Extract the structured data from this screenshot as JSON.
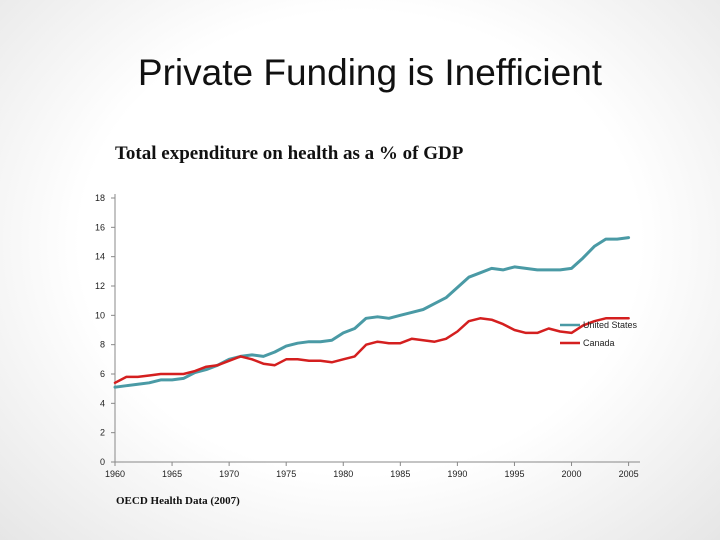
{
  "slide": {
    "title": "Private Funding is Inefficient"
  },
  "source_note": "OECD Health Data (2007)",
  "chart_data": {
    "type": "line",
    "title": "Total expenditure on health as a % of GDP",
    "xlabel": "",
    "ylabel": "",
    "xlim": [
      1960,
      2006
    ],
    "ylim": [
      0,
      18
    ],
    "x_ticks": [
      1960,
      1965,
      1970,
      1975,
      1980,
      1985,
      1990,
      1995,
      2000,
      2005
    ],
    "y_ticks": [
      0,
      2,
      4,
      6,
      8,
      10,
      12,
      14,
      16,
      18
    ],
    "grid": false,
    "legend_position": "right",
    "series": [
      {
        "name": "United States",
        "color": "#4a9aa5",
        "points": [
          [
            1960,
            5.1
          ],
          [
            1961,
            5.2
          ],
          [
            1962,
            5.3
          ],
          [
            1963,
            5.4
          ],
          [
            1964,
            5.6
          ],
          [
            1965,
            5.6
          ],
          [
            1966,
            5.7
          ],
          [
            1967,
            6.1
          ],
          [
            1968,
            6.3
          ],
          [
            1969,
            6.6
          ],
          [
            1970,
            7.0
          ],
          [
            1971,
            7.2
          ],
          [
            1972,
            7.3
          ],
          [
            1973,
            7.2
          ],
          [
            1974,
            7.5
          ],
          [
            1975,
            7.9
          ],
          [
            1976,
            8.1
          ],
          [
            1977,
            8.2
          ],
          [
            1978,
            8.2
          ],
          [
            1979,
            8.3
          ],
          [
            1980,
            8.8
          ],
          [
            1981,
            9.1
          ],
          [
            1982,
            9.8
          ],
          [
            1983,
            9.9
          ],
          [
            1984,
            9.8
          ],
          [
            1985,
            10.0
          ],
          [
            1986,
            10.2
          ],
          [
            1987,
            10.4
          ],
          [
            1988,
            10.8
          ],
          [
            1989,
            11.2
          ],
          [
            1990,
            11.9
          ],
          [
            1991,
            12.6
          ],
          [
            1992,
            12.9
          ],
          [
            1993,
            13.2
          ],
          [
            1994,
            13.1
          ],
          [
            1995,
            13.3
          ],
          [
            1996,
            13.2
          ],
          [
            1997,
            13.1
          ],
          [
            1998,
            13.1
          ],
          [
            1999,
            13.1
          ],
          [
            2000,
            13.2
          ],
          [
            2001,
            13.9
          ],
          [
            2002,
            14.7
          ],
          [
            2003,
            15.2
          ],
          [
            2004,
            15.2
          ],
          [
            2005,
            15.3
          ]
        ]
      },
      {
        "name": "Canada",
        "color": "#d41f1f",
        "points": [
          [
            1960,
            5.4
          ],
          [
            1961,
            5.8
          ],
          [
            1962,
            5.8
          ],
          [
            1963,
            5.9
          ],
          [
            1964,
            6.0
          ],
          [
            1965,
            6.0
          ],
          [
            1966,
            6.0
          ],
          [
            1967,
            6.2
          ],
          [
            1968,
            6.5
          ],
          [
            1969,
            6.6
          ],
          [
            1970,
            6.9
          ],
          [
            1971,
            7.2
          ],
          [
            1972,
            7.0
          ],
          [
            1973,
            6.7
          ],
          [
            1974,
            6.6
          ],
          [
            1975,
            7.0
          ],
          [
            1976,
            7.0
          ],
          [
            1977,
            6.9
          ],
          [
            1978,
            6.9
          ],
          [
            1979,
            6.8
          ],
          [
            1980,
            7.0
          ],
          [
            1981,
            7.2
          ],
          [
            1982,
            8.0
          ],
          [
            1983,
            8.2
          ],
          [
            1984,
            8.1
          ],
          [
            1985,
            8.1
          ],
          [
            1986,
            8.4
          ],
          [
            1987,
            8.3
          ],
          [
            1988,
            8.2
          ],
          [
            1989,
            8.4
          ],
          [
            1990,
            8.9
          ],
          [
            1991,
            9.6
          ],
          [
            1992,
            9.8
          ],
          [
            1993,
            9.7
          ],
          [
            1994,
            9.4
          ],
          [
            1995,
            9.0
          ],
          [
            1996,
            8.8
          ],
          [
            1997,
            8.8
          ],
          [
            1998,
            9.1
          ],
          [
            1999,
            8.9
          ],
          [
            2000,
            8.8
          ],
          [
            2001,
            9.3
          ],
          [
            2002,
            9.6
          ],
          [
            2003,
            9.8
          ],
          [
            2004,
            9.8
          ],
          [
            2005,
            9.8
          ]
        ]
      }
    ]
  }
}
